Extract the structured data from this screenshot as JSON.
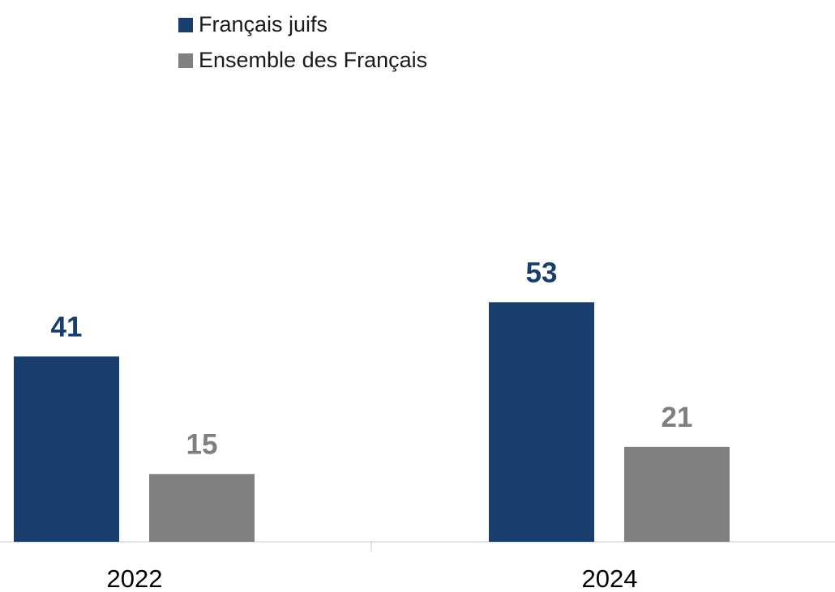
{
  "chart_data": {
    "type": "bar",
    "categories": [
      "2022",
      "2024"
    ],
    "series": [
      {
        "name": "Français juifs",
        "color": "#173e6d",
        "values": [
          41,
          53
        ]
      },
      {
        "name": "Ensemble des Français",
        "color": "#808080",
        "values": [
          15,
          21
        ]
      }
    ],
    "ylim": [
      0,
      100
    ],
    "legend": "top"
  }
}
